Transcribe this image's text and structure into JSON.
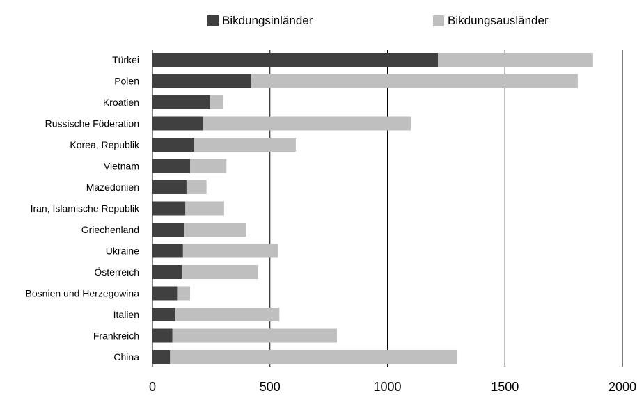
{
  "chart_data": {
    "type": "bar",
    "orientation": "horizontal",
    "stacked": true,
    "categories": [
      "Türkei",
      "Polen",
      "Kroatien",
      "Russische Föderation",
      "Korea, Republik",
      "Vietnam",
      "Mazedonien",
      "Iran, Islamische Republik",
      "Griechenland",
      "Ukraine",
      "Österreich",
      "Bosnien und Herzegowina",
      "Italien",
      "Frankreich",
      "China"
    ],
    "series": [
      {
        "name": "Bikdungsinländer",
        "color": "#404040",
        "values": [
          1215,
          420,
          245,
          215,
          175,
          160,
          145,
          140,
          135,
          130,
          125,
          105,
          95,
          85,
          75
        ]
      },
      {
        "name": "Bikdungsausländer",
        "color": "#bfbfbf",
        "values": [
          660,
          1390,
          55,
          885,
          435,
          155,
          85,
          165,
          265,
          405,
          325,
          55,
          445,
          700,
          1220
        ]
      }
    ],
    "xlim": [
      0,
      2000
    ],
    "xticks": [
      0,
      500,
      1000,
      1500,
      2000
    ],
    "xlabel": "",
    "ylabel": "",
    "title": "",
    "grid": "vertical",
    "legend_position": "top"
  }
}
